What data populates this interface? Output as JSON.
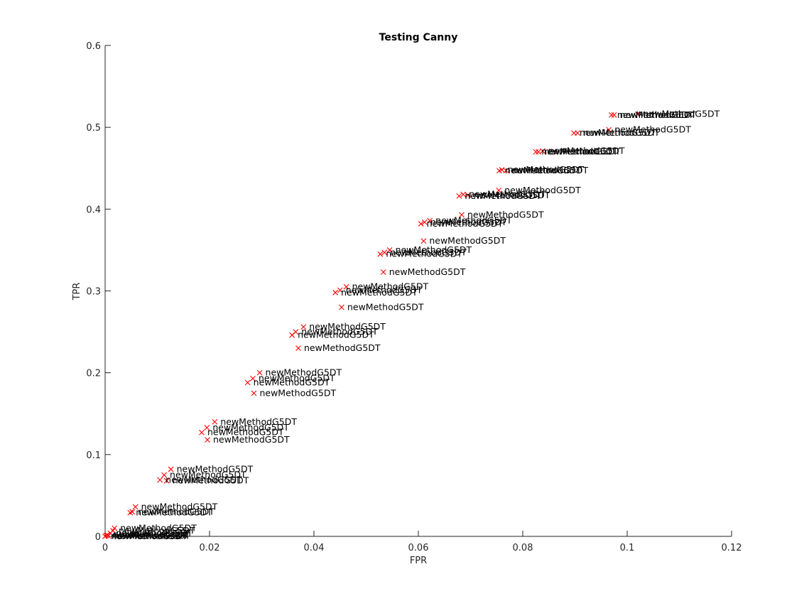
{
  "chart_data": {
    "type": "scatter",
    "title": "Testing Canny",
    "xlabel": "FPR",
    "ylabel": "TPR",
    "xlim": [
      0,
      0.12
    ],
    "ylim": [
      0,
      0.6
    ],
    "xticks": [
      0,
      0.02,
      0.04,
      0.06,
      0.08,
      0.1,
      0.12
    ],
    "xtick_labels": [
      "0",
      "0.02",
      "0.04",
      "0.06",
      "0.08",
      "0.1",
      "0.12"
    ],
    "yticks": [
      0,
      0.1,
      0.2,
      0.3,
      0.4,
      0.5,
      0.6
    ],
    "ytick_labels": [
      "0",
      "0.1",
      "0.2",
      "0.3",
      "0.4",
      "0.5",
      "0.6"
    ],
    "marker": "x",
    "marker_color": "#ff0000",
    "grid": false,
    "point_label_text": "newMethodG5DT",
    "series": [
      {
        "points": [
          {
            "x": 0.0,
            "y": 0.0,
            "label": "newMethodG5DT"
          },
          {
            "x": 0.0002,
            "y": 0.001,
            "label": "newMethodG5DT"
          },
          {
            "x": 0.0004,
            "y": 0.002,
            "label": "newMethodG5DT"
          },
          {
            "x": 0.0006,
            "y": 0.0005,
            "label": "newMethodG5DT"
          },
          {
            "x": 0.0015,
            "y": 0.007,
            "label": "newMethodG5DT"
          },
          {
            "x": 0.0018,
            "y": 0.01,
            "label": "newMethodG5DT"
          },
          {
            "x": 0.001,
            "y": 0.004,
            "label": "newMethodG5DT"
          },
          {
            "x": 0.0048,
            "y": 0.029,
            "label": "newMethodG5DT"
          },
          {
            "x": 0.0052,
            "y": 0.03,
            "label": "newMethodG5DT"
          },
          {
            "x": 0.0058,
            "y": 0.036,
            "label": "newMethodG5DT"
          },
          {
            "x": 0.0105,
            "y": 0.069,
            "label": "newMethodG5DT"
          },
          {
            "x": 0.0113,
            "y": 0.075,
            "label": "newMethodG5DT"
          },
          {
            "x": 0.0126,
            "y": 0.082,
            "label": "newMethodG5DT"
          },
          {
            "x": 0.0118,
            "y": 0.068,
            "label": "newMethodG5DT"
          },
          {
            "x": 0.0185,
            "y": 0.127,
            "label": "newMethodG5DT"
          },
          {
            "x": 0.0196,
            "y": 0.118,
            "label": "newMethodG5DT"
          },
          {
            "x": 0.0195,
            "y": 0.133,
            "label": "newMethodG5DT"
          },
          {
            "x": 0.021,
            "y": 0.14,
            "label": "newMethodG5DT"
          },
          {
            "x": 0.0273,
            "y": 0.188,
            "label": "newMethodG5DT"
          },
          {
            "x": 0.0283,
            "y": 0.193,
            "label": "newMethodG5DT"
          },
          {
            "x": 0.0296,
            "y": 0.2,
            "label": "newMethodG5DT"
          },
          {
            "x": 0.0285,
            "y": 0.175,
            "label": "newMethodG5DT"
          },
          {
            "x": 0.0358,
            "y": 0.246,
            "label": "newMethodG5DT"
          },
          {
            "x": 0.0365,
            "y": 0.25,
            "label": "newMethodG5DT"
          },
          {
            "x": 0.038,
            "y": 0.256,
            "label": "newMethodG5DT"
          },
          {
            "x": 0.037,
            "y": 0.23,
            "label": "newMethodG5DT"
          },
          {
            "x": 0.0441,
            "y": 0.298,
            "label": "newMethodG5DT"
          },
          {
            "x": 0.045,
            "y": 0.301,
            "label": "newMethodG5DT"
          },
          {
            "x": 0.0462,
            "y": 0.305,
            "label": "newMethodG5DT"
          },
          {
            "x": 0.0453,
            "y": 0.28,
            "label": "newMethodG5DT"
          },
          {
            "x": 0.0527,
            "y": 0.345,
            "label": "newMethodG5DT"
          },
          {
            "x": 0.0535,
            "y": 0.347,
            "label": "newMethodG5DT"
          },
          {
            "x": 0.0545,
            "y": 0.35,
            "label": "newMethodG5DT"
          },
          {
            "x": 0.0533,
            "y": 0.323,
            "label": "newMethodG5DT"
          },
          {
            "x": 0.0605,
            "y": 0.382,
            "label": "newMethodG5DT"
          },
          {
            "x": 0.0612,
            "y": 0.384,
            "label": "newMethodG5DT"
          },
          {
            "x": 0.0622,
            "y": 0.386,
            "label": "newMethodG5DT"
          },
          {
            "x": 0.061,
            "y": 0.361,
            "label": "newMethodG5DT"
          },
          {
            "x": 0.0678,
            "y": 0.416,
            "label": "newMethodG5DT"
          },
          {
            "x": 0.0686,
            "y": 0.418,
            "label": "newMethodG5DT"
          },
          {
            "x": 0.0695,
            "y": 0.417,
            "label": "newMethodG5DT"
          },
          {
            "x": 0.0683,
            "y": 0.393,
            "label": "newMethodG5DT"
          },
          {
            "x": 0.0754,
            "y": 0.423,
            "label": "newMethodG5DT"
          },
          {
            "x": 0.0755,
            "y": 0.447,
            "label": "newMethodG5DT"
          },
          {
            "x": 0.076,
            "y": 0.448,
            "label": "newMethodG5DT"
          },
          {
            "x": 0.0768,
            "y": 0.447,
            "label": "newMethodG5DT"
          },
          {
            "x": 0.0825,
            "y": 0.47,
            "label": "newMethodG5DT"
          },
          {
            "x": 0.083,
            "y": 0.47,
            "label": "newMethodG5DT"
          },
          {
            "x": 0.0838,
            "y": 0.471,
            "label": "newMethodG5DT"
          },
          {
            "x": 0.0898,
            "y": 0.493,
            "label": "newMethodG5DT"
          },
          {
            "x": 0.0905,
            "y": 0.493,
            "label": "newMethodG5DT"
          },
          {
            "x": 0.0965,
            "y": 0.497,
            "label": "newMethodG5DT"
          },
          {
            "x": 0.097,
            "y": 0.515,
            "label": "newMethodG5DT"
          },
          {
            "x": 0.0975,
            "y": 0.515,
            "label": "newMethodG5DT"
          },
          {
            "x": 0.102,
            "y": 0.516,
            "label": "newMethodG5DT"
          }
        ]
      }
    ]
  }
}
